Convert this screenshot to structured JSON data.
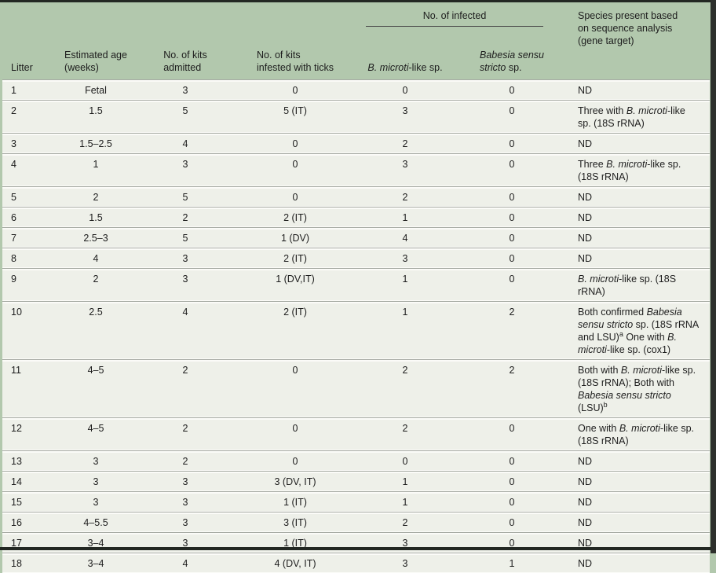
{
  "page": {
    "colors": {
      "page_background": "#b2c8ad",
      "row_background": "#eef0e9",
      "separator": "#a6aaa3",
      "rule": "#232823",
      "right_band": "#2d302c",
      "gap_line": "#fbfbf8",
      "text": "#1d1d1d"
    }
  },
  "table": {
    "group_header": "No. of infected",
    "columns": {
      "litter": "Litter",
      "age": [
        {
          "t": "Estimated age"
        },
        {
          "br": true
        },
        {
          "t": "(weeks)"
        }
      ],
      "admitted": [
        {
          "t": "No. of kits"
        },
        {
          "br": true
        },
        {
          "t": "admitted"
        }
      ],
      "infested": [
        {
          "t": "No. of kits"
        },
        {
          "br": true
        },
        {
          "t": "infested with ticks"
        }
      ],
      "microti": [
        {
          "t": "B. microti",
          "i": true
        },
        {
          "t": "-like sp."
        }
      ],
      "sensu": [
        {
          "t": "Babesia sensu",
          "i": true
        },
        {
          "br": true
        },
        {
          "t": "stricto",
          "i": true
        },
        {
          "t": " sp."
        }
      ],
      "species": [
        {
          "t": "Species present based"
        },
        {
          "br": true
        },
        {
          "t": "on sequence analysis"
        },
        {
          "br": true
        },
        {
          "t": "(gene target)"
        }
      ]
    },
    "rows": [
      {
        "litter": "1",
        "age": "Fetal",
        "admitted": "3",
        "infested": "0",
        "microti": "0",
        "sensu": "0",
        "species": [
          {
            "t": "ND"
          }
        ]
      },
      {
        "litter": "2",
        "age": "1.5",
        "admitted": "5",
        "infested": "5 (IT)",
        "microti": "3",
        "sensu": "0",
        "species": [
          {
            "t": "Three with "
          },
          {
            "t": "B. microti",
            "i": true
          },
          {
            "t": "-like sp. (18S rRNA)"
          }
        ]
      },
      {
        "litter": "3",
        "age": "1.5–2.5",
        "admitted": "4",
        "infested": "0",
        "microti": "2",
        "sensu": "0",
        "species": [
          {
            "t": "ND"
          }
        ]
      },
      {
        "litter": "4",
        "age": "1",
        "admitted": "3",
        "infested": "0",
        "microti": "3",
        "sensu": "0",
        "species": [
          {
            "t": "Three "
          },
          {
            "t": "B. microti",
            "i": true
          },
          {
            "t": "-like sp. (18S rRNA)"
          }
        ]
      },
      {
        "litter": "5",
        "age": "2",
        "admitted": "5",
        "infested": "0",
        "microti": "2",
        "sensu": "0",
        "species": [
          {
            "t": "ND"
          }
        ]
      },
      {
        "litter": "6",
        "age": "1.5",
        "admitted": "2",
        "infested": "2 (IT)",
        "microti": "1",
        "sensu": "0",
        "species": [
          {
            "t": "ND"
          }
        ]
      },
      {
        "litter": "7",
        "age": "2.5–3",
        "admitted": "5",
        "infested": "1 (DV)",
        "microti": "4",
        "sensu": "0",
        "species": [
          {
            "t": "ND"
          }
        ]
      },
      {
        "litter": "8",
        "age": "4",
        "admitted": "3",
        "infested": "2 (IT)",
        "microti": "3",
        "sensu": "0",
        "species": [
          {
            "t": "ND"
          }
        ]
      },
      {
        "litter": "9",
        "age": "2",
        "admitted": "3",
        "infested": "1 (DV,IT)",
        "microti": "1",
        "sensu": "0",
        "species": [
          {
            "t": "B. microti",
            "i": true
          },
          {
            "t": "-like sp. (18S rRNA)"
          }
        ]
      },
      {
        "litter": "10",
        "age": "2.5",
        "admitted": "4",
        "infested": "2 (IT)",
        "microti": "1",
        "sensu": "2",
        "species": [
          {
            "t": "Both confirmed "
          },
          {
            "t": "Babesia sensu stricto",
            "i": true
          },
          {
            "t": " sp. (18S rRNA and LSU)"
          },
          {
            "t": "a",
            "sup": true
          },
          {
            "t": " One with "
          },
          {
            "t": "B. microti",
            "i": true
          },
          {
            "t": "-like sp. (cox1)"
          }
        ]
      },
      {
        "litter": "11",
        "age": "4–5",
        "admitted": "2",
        "infested": "0",
        "microti": "2",
        "sensu": "2",
        "species": [
          {
            "t": "Both with "
          },
          {
            "t": "B. microti",
            "i": true
          },
          {
            "t": "-like sp. (18S rRNA); Both with "
          },
          {
            "t": "Babesia sensu stricto",
            "i": true
          },
          {
            "t": " (LSU)"
          },
          {
            "t": "b",
            "sup": true
          }
        ]
      },
      {
        "litter": "12",
        "age": "4–5",
        "admitted": "2",
        "infested": "0",
        "microti": "2",
        "sensu": "0",
        "species": [
          {
            "t": "One with "
          },
          {
            "t": "B. microti",
            "i": true
          },
          {
            "t": "-like sp. (18S rRNA)"
          }
        ]
      },
      {
        "litter": "13",
        "age": "3",
        "admitted": "2",
        "infested": "0",
        "microti": "0",
        "sensu": "0",
        "species": [
          {
            "t": "ND"
          }
        ]
      },
      {
        "litter": "14",
        "age": "3",
        "admitted": "3",
        "infested": "3 (DV, IT)",
        "microti": "1",
        "sensu": "0",
        "species": [
          {
            "t": "ND"
          }
        ]
      },
      {
        "litter": "15",
        "age": "3",
        "admitted": "3",
        "infested": "1 (IT)",
        "microti": "1",
        "sensu": "0",
        "species": [
          {
            "t": "ND"
          }
        ]
      },
      {
        "litter": "16",
        "age": "4–5.5",
        "admitted": "3",
        "infested": "3 (IT)",
        "microti": "2",
        "sensu": "0",
        "species": [
          {
            "t": "ND"
          }
        ]
      },
      {
        "litter": "17",
        "age": "3–4",
        "admitted": "3",
        "infested": "1 (IT)",
        "microti": "3",
        "sensu": "0",
        "species": [
          {
            "t": "ND"
          }
        ]
      },
      {
        "litter": "18",
        "age": "3–4",
        "admitted": "4",
        "infested": "4 (DV, IT)",
        "microti": "3",
        "sensu": "1",
        "species": [
          {
            "t": "ND"
          }
        ]
      }
    ]
  }
}
